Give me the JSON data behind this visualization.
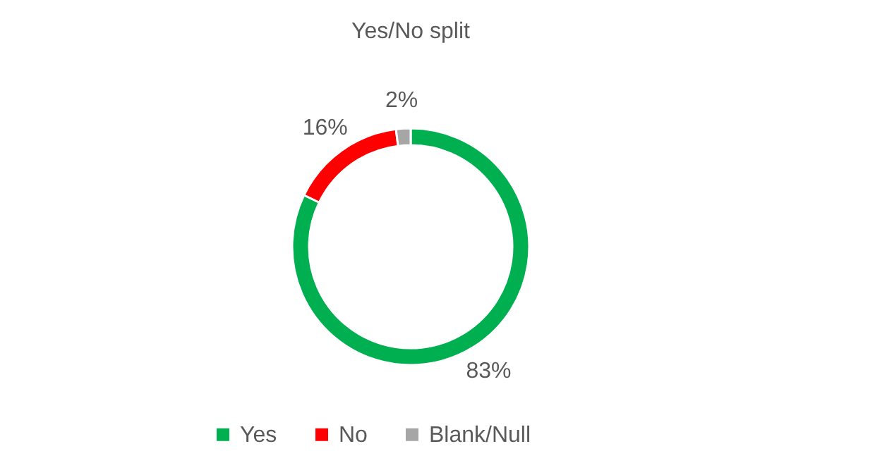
{
  "chart_data": {
    "type": "donut",
    "title": "Yes/No split",
    "categories": [
      "Yes",
      "No",
      "Blank/Null"
    ],
    "values": [
      83,
      16,
      2
    ],
    "colors": [
      "#00b050",
      "#ff0000",
      "#a6a6a6"
    ],
    "value_labels": [
      "83%",
      "16%",
      "2%"
    ],
    "legend": "bottom"
  }
}
